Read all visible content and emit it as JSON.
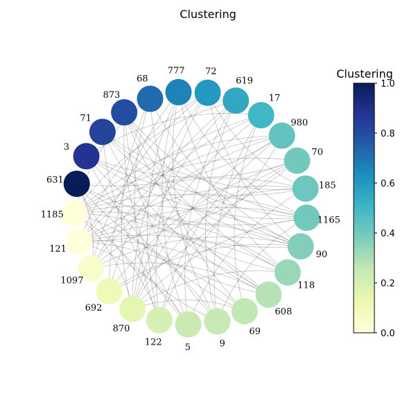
{
  "chart_data": {
    "type": "network",
    "title": "Clustering",
    "layout": "circular",
    "nodes": [
      {
        "id": "631",
        "value": 1.0
      },
      {
        "id": "3",
        "value": 0.88
      },
      {
        "id": "71",
        "value": 0.83
      },
      {
        "id": "873",
        "value": 0.8
      },
      {
        "id": "68",
        "value": 0.72
      },
      {
        "id": "777",
        "value": 0.66
      },
      {
        "id": "72",
        "value": 0.6
      },
      {
        "id": "619",
        "value": 0.55
      },
      {
        "id": "17",
        "value": 0.5
      },
      {
        "id": "980",
        "value": 0.43
      },
      {
        "id": "70",
        "value": 0.4
      },
      {
        "id": "185",
        "value": 0.41
      },
      {
        "id": "1165",
        "value": 0.4
      },
      {
        "id": "90",
        "value": 0.37
      },
      {
        "id": "118",
        "value": 0.33
      },
      {
        "id": "608",
        "value": 0.28
      },
      {
        "id": "69",
        "value": 0.26
      },
      {
        "id": "9",
        "value": 0.25
      },
      {
        "id": "5",
        "value": 0.24
      },
      {
        "id": "122",
        "value": 0.2
      },
      {
        "id": "870",
        "value": 0.15
      },
      {
        "id": "692",
        "value": 0.1
      },
      {
        "id": "1097",
        "value": 0.04
      },
      {
        "id": "121",
        "value": 0.0
      },
      {
        "id": "1185",
        "value": 0.0
      }
    ],
    "edges": [
      [
        "68",
        "90"
      ],
      [
        "68",
        "870"
      ],
      [
        "68",
        "122"
      ],
      [
        "68",
        "1185"
      ],
      [
        "68",
        "69"
      ],
      [
        "777",
        "1165"
      ],
      [
        "777",
        "122"
      ],
      [
        "777",
        "5"
      ],
      [
        "777",
        "9"
      ],
      [
        "777",
        "118"
      ],
      [
        "777",
        "692"
      ],
      [
        "72",
        "870"
      ],
      [
        "72",
        "122"
      ],
      [
        "72",
        "121"
      ],
      [
        "72",
        "1097"
      ],
      [
        "72",
        "90"
      ],
      [
        "72",
        "185"
      ],
      [
        "619",
        "870"
      ],
      [
        "619",
        "5"
      ],
      [
        "619",
        "9"
      ],
      [
        "619",
        "1185"
      ],
      [
        "619",
        "692"
      ],
      [
        "17",
        "121"
      ],
      [
        "17",
        "870"
      ],
      [
        "17",
        "9"
      ],
      [
        "17",
        "69"
      ],
      [
        "17",
        "1097"
      ],
      [
        "17",
        "3"
      ],
      [
        "873",
        "9"
      ],
      [
        "873",
        "90"
      ],
      [
        "873",
        "1165"
      ],
      [
        "873",
        "608"
      ],
      [
        "873",
        "118"
      ],
      [
        "873",
        "5"
      ],
      [
        "71",
        "185"
      ],
      [
        "71",
        "90"
      ],
      [
        "71",
        "5"
      ],
      [
        "71",
        "1165"
      ],
      [
        "71",
        "608"
      ],
      [
        "3",
        "70"
      ],
      [
        "3",
        "1165"
      ],
      [
        "3",
        "118"
      ],
      [
        "3",
        "185"
      ],
      [
        "3",
        "69"
      ],
      [
        "631",
        "980"
      ],
      [
        "631",
        "90"
      ],
      [
        "631",
        "1165"
      ],
      [
        "631",
        "608"
      ],
      [
        "631",
        "9"
      ],
      [
        "980",
        "870"
      ],
      [
        "980",
        "122"
      ],
      [
        "980",
        "1185"
      ],
      [
        "980",
        "121"
      ],
      [
        "980",
        "1097"
      ],
      [
        "70",
        "870"
      ],
      [
        "70",
        "692"
      ],
      [
        "70",
        "1185"
      ],
      [
        "70",
        "122"
      ],
      [
        "185",
        "1185"
      ],
      [
        "185",
        "1097"
      ],
      [
        "185",
        "121"
      ],
      [
        "185",
        "5"
      ],
      [
        "1165",
        "1185"
      ],
      [
        "1165",
        "121"
      ],
      [
        "1165",
        "870"
      ],
      [
        "1165",
        "9"
      ],
      [
        "90",
        "121"
      ],
      [
        "90",
        "1097"
      ],
      [
        "90",
        "692"
      ],
      [
        "90",
        "1185"
      ],
      [
        "118",
        "1185"
      ],
      [
        "118",
        "121"
      ],
      [
        "118",
        "870"
      ],
      [
        "608",
        "1185"
      ],
      [
        "608",
        "121"
      ],
      [
        "608",
        "1097"
      ],
      [
        "69",
        "121"
      ],
      [
        "69",
        "870"
      ],
      [
        "9",
        "1185"
      ],
      [
        "5",
        "121"
      ],
      [
        "122",
        "1185"
      ],
      [
        "870",
        "1185"
      ],
      [
        "1097",
        "631"
      ],
      [
        "692",
        "980"
      ],
      [
        "121",
        "70"
      ]
    ],
    "colorbar": {
      "title": "Clustering",
      "range": [
        0.0,
        1.0
      ],
      "ticks": [
        "0.0",
        "0.2",
        "0.4",
        "0.6",
        "0.8",
        "1.0"
      ],
      "colormap": "YlGnBu"
    }
  }
}
